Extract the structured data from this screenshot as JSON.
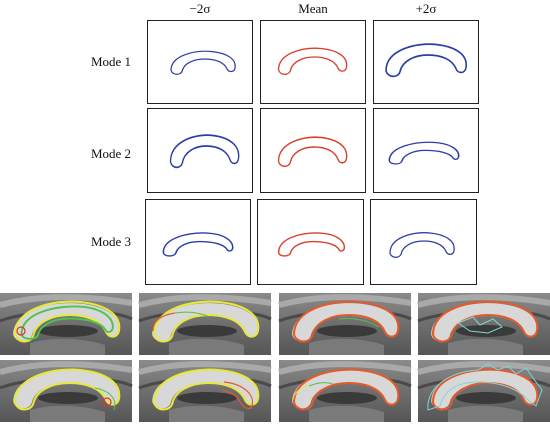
{
  "columns": [
    "−2σ",
    "Mean",
    "+2σ"
  ],
  "rows": [
    "Mode 1",
    "Mode 2",
    "Mode 3"
  ]
}
